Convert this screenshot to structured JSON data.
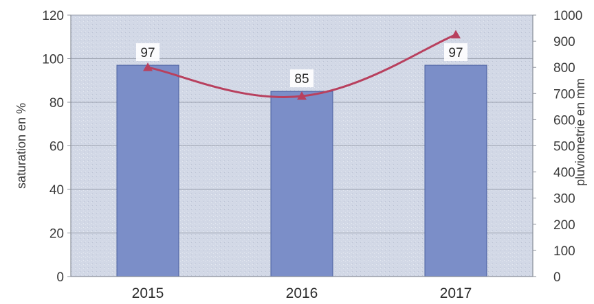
{
  "chart_data": {
    "type": "bar",
    "categories": [
      "2015",
      "2016",
      "2017"
    ],
    "series": [
      {
        "values": [
          97,
          85,
          97
        ],
        "type": "bar",
        "axis": "left",
        "data_labels": [
          "97",
          "85",
          "97"
        ]
      },
      {
        "values": [
          800,
          690,
          925
        ],
        "type": "line",
        "axis": "right",
        "marker": "triangle"
      }
    ],
    "ylabel": "saturation en %",
    "y2label": "pluviometrie en mm",
    "ylim": [
      0,
      120
    ],
    "y2lim": [
      0,
      1000
    ],
    "yticks": [
      "0",
      "20",
      "40",
      "60",
      "80",
      "100",
      "120"
    ],
    "y2ticks": [
      "0",
      "100",
      "200",
      "300",
      "400",
      "500",
      "600",
      "700",
      "800",
      "900",
      "1000"
    ],
    "grid": true,
    "legend": "none",
    "colors": {
      "bar": "#7b8ec8",
      "bar_edge": "#4a5f9e",
      "line": "#b8405e",
      "plot_bg": "#d2d8e6",
      "grid": "#9aa0ad"
    }
  }
}
